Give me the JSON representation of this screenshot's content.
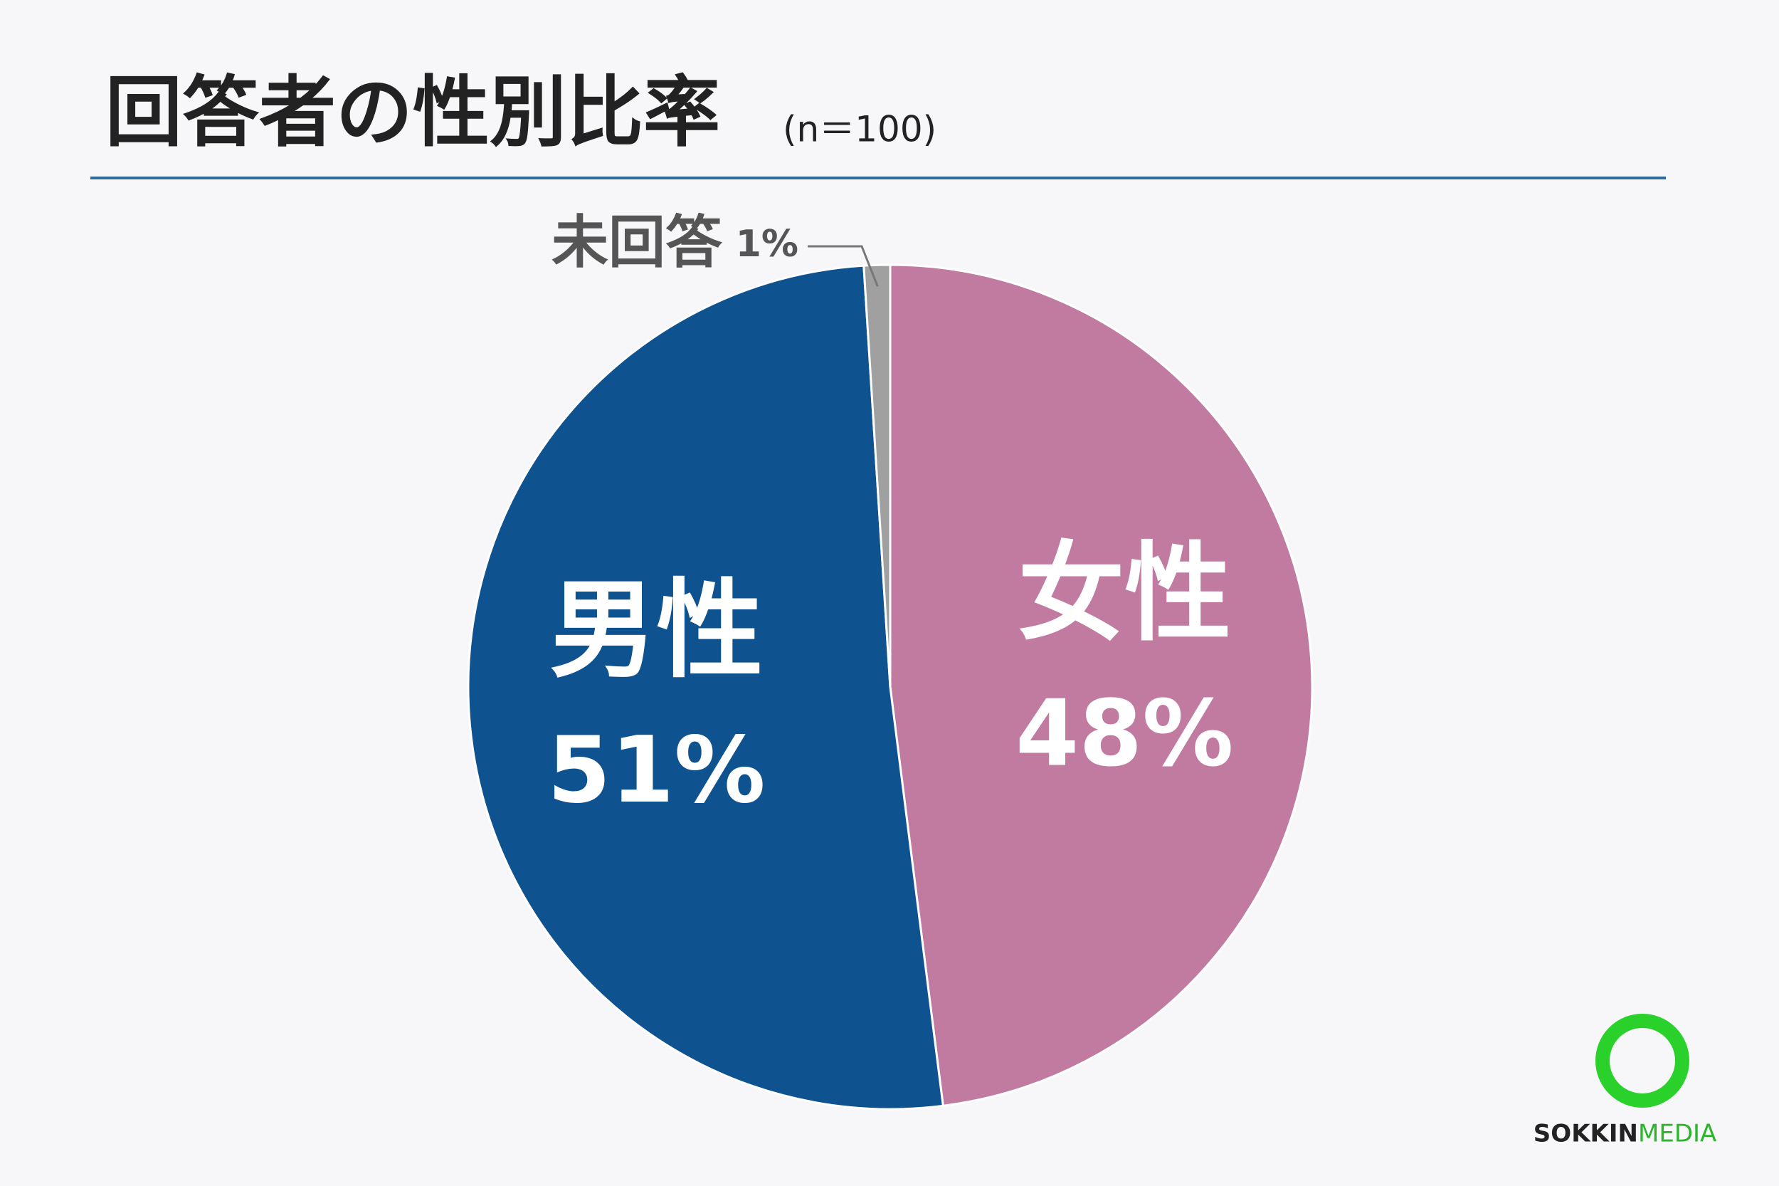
{
  "chart_data": {
    "type": "pie",
    "title": "回答者の性別比率",
    "subtitle": "(n＝100)",
    "categories": [
      "女性",
      "男性",
      "未回答"
    ],
    "values": [
      48,
      51,
      1
    ],
    "value_labels": [
      "48%",
      "51%",
      "1%"
    ],
    "colors": [
      "#c27ba0",
      "#0e5290",
      "#a0a0a0"
    ]
  },
  "logo": {
    "left": "SOKKIN",
    "right": "MEDIA"
  }
}
